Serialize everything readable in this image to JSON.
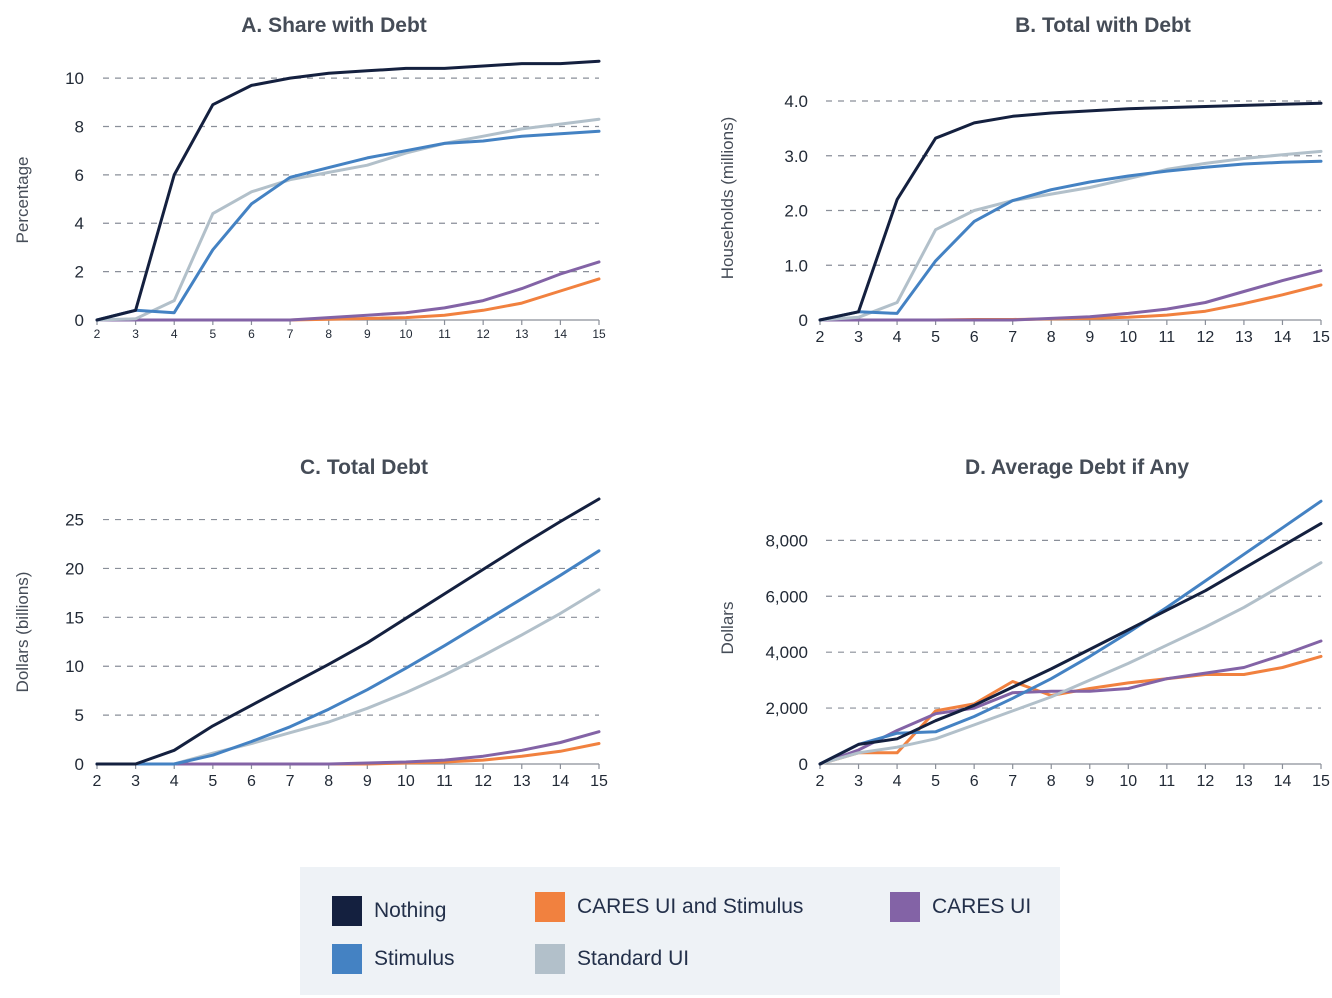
{
  "colors": {
    "Nothing": "#14203f",
    "Stimulus": "#4482c3",
    "Standard UI": "#b2c0ca",
    "CARES UI": "#8363a6",
    "CARES UI and Stimulus": "#f1813f",
    "grid": "#8a8f99",
    "axis": "#8a8f99",
    "text": "#454c57"
  },
  "legend": {
    "items": [
      {
        "label": "Nothing",
        "series": "Nothing"
      },
      {
        "label": "CARES UI and Stimulus",
        "series": "CARES UI and Stimulus"
      },
      {
        "label": "CARES UI",
        "series": "CARES UI"
      },
      {
        "label": "Stimulus",
        "series": "Stimulus"
      },
      {
        "label": "Standard UI",
        "series": "Standard UI"
      }
    ]
  },
  "chart_data": [
    {
      "type": "line",
      "title": "A. Share with Debt",
      "xlabel": "",
      "ylabel": "Percentage",
      "x": [
        2,
        3,
        4,
        5,
        6,
        7,
        8,
        9,
        10,
        11,
        12,
        13,
        14,
        15
      ],
      "xlim": [
        2,
        15
      ],
      "ylim": [
        0,
        10.5
      ],
      "yticks": [
        0,
        2,
        4,
        6,
        8,
        10
      ],
      "ytick_labels": [
        "0",
        "2",
        "4",
        "6",
        "8",
        "10"
      ],
      "grid": true,
      "series": [
        {
          "name": "Nothing",
          "values": [
            0,
            0.4,
            6.0,
            8.9,
            9.7,
            10.0,
            10.2,
            10.3,
            10.4,
            10.4,
            10.5,
            10.6,
            10.6,
            10.7
          ]
        },
        {
          "name": "Stimulus",
          "values": [
            0,
            0.4,
            0.3,
            2.9,
            4.8,
            5.9,
            6.3,
            6.7,
            7.0,
            7.3,
            7.4,
            7.6,
            7.7,
            7.8
          ]
        },
        {
          "name": "Standard UI",
          "values": [
            0,
            0.05,
            0.8,
            4.4,
            5.3,
            5.8,
            6.1,
            6.4,
            6.9,
            7.3,
            7.6,
            7.9,
            8.1,
            8.3
          ]
        },
        {
          "name": "CARES UI",
          "values": [
            0,
            0,
            0,
            0,
            0,
            0,
            0.1,
            0.2,
            0.3,
            0.5,
            0.8,
            1.3,
            1.9,
            2.4
          ]
        },
        {
          "name": "CARES UI and Stimulus",
          "values": [
            0,
            0,
            0,
            0,
            0,
            0,
            0.03,
            0.06,
            0.1,
            0.2,
            0.4,
            0.7,
            1.2,
            1.7
          ]
        }
      ]
    },
    {
      "type": "line",
      "title": "B. Total with Debt",
      "xlabel": "",
      "ylabel": "Households (millions)",
      "x": [
        2,
        3,
        4,
        5,
        6,
        7,
        8,
        9,
        10,
        11,
        12,
        13,
        14,
        15
      ],
      "xlim": [
        2,
        15
      ],
      "ylim": [
        0,
        4.0
      ],
      "yticks": [
        0,
        1,
        2,
        3,
        4
      ],
      "ytick_labels": [
        "0",
        "1.0",
        "2.0",
        "3.0",
        "4.0"
      ],
      "grid": true,
      "series": [
        {
          "name": "Nothing",
          "values": [
            0,
            0.15,
            2.2,
            3.32,
            3.6,
            3.72,
            3.78,
            3.82,
            3.86,
            3.88,
            3.9,
            3.92,
            3.94,
            3.96
          ]
        },
        {
          "name": "Stimulus",
          "values": [
            0,
            0.15,
            0.12,
            1.08,
            1.8,
            2.18,
            2.38,
            2.52,
            2.63,
            2.72,
            2.79,
            2.85,
            2.88,
            2.9
          ]
        },
        {
          "name": "Standard UI",
          "values": [
            0,
            0.05,
            0.32,
            1.65,
            2.0,
            2.18,
            2.3,
            2.42,
            2.58,
            2.75,
            2.86,
            2.95,
            3.02,
            3.08
          ]
        },
        {
          "name": "CARES UI",
          "values": [
            0,
            0,
            0,
            0,
            0,
            0,
            0.03,
            0.06,
            0.12,
            0.2,
            0.32,
            0.52,
            0.72,
            0.9
          ]
        },
        {
          "name": "CARES UI and Stimulus",
          "values": [
            0,
            0,
            0,
            0,
            0.01,
            0.01,
            0.02,
            0.03,
            0.05,
            0.09,
            0.16,
            0.3,
            0.46,
            0.64
          ]
        }
      ]
    },
    {
      "type": "line",
      "title": "C. Total Debt",
      "xlabel": "",
      "ylabel": "Dollars (billions)",
      "x": [
        2,
        3,
        4,
        5,
        6,
        7,
        8,
        9,
        10,
        11,
        12,
        13,
        14,
        15
      ],
      "xlim": [
        2,
        15
      ],
      "ylim": [
        0,
        27
      ],
      "yticks": [
        0,
        5,
        10,
        15,
        20,
        25
      ],
      "ytick_labels": [
        "0",
        "5",
        "10",
        "15",
        "20",
        "25"
      ],
      "grid": true,
      "series": [
        {
          "name": "Nothing",
          "values": [
            0,
            0,
            1.4,
            3.9,
            6.0,
            8.1,
            10.2,
            12.4,
            14.9,
            17.4,
            19.9,
            22.4,
            24.8,
            27.1
          ]
        },
        {
          "name": "Stimulus",
          "values": [
            0,
            0,
            0,
            0.9,
            2.3,
            3.8,
            5.6,
            7.6,
            9.8,
            12.1,
            14.5,
            16.9,
            19.3,
            21.8
          ]
        },
        {
          "name": "Standard UI",
          "values": [
            0,
            0,
            0,
            1.1,
            2.1,
            3.2,
            4.3,
            5.7,
            7.3,
            9.1,
            11.1,
            13.2,
            15.4,
            17.8
          ]
        },
        {
          "name": "CARES UI",
          "values": [
            0,
            0,
            0,
            0,
            0,
            0,
            0,
            0.1,
            0.2,
            0.4,
            0.8,
            1.4,
            2.2,
            3.3
          ]
        },
        {
          "name": "CARES UI and Stimulus",
          "values": [
            0,
            0,
            0,
            0,
            0,
            0,
            0,
            0,
            0.1,
            0.2,
            0.4,
            0.8,
            1.3,
            2.1
          ]
        }
      ]
    },
    {
      "type": "line",
      "title": "D. Average Debt if Any",
      "xlabel": "",
      "ylabel": "Dollars",
      "x": [
        2,
        3,
        4,
        5,
        6,
        7,
        8,
        9,
        10,
        11,
        12,
        13,
        14,
        15
      ],
      "xlim": [
        2,
        15
      ],
      "ylim": [
        0,
        9300
      ],
      "yticks": [
        0,
        2000,
        4000,
        6000,
        8000
      ],
      "ytick_labels": [
        "0",
        "2,000",
        "4,000",
        "6,000",
        "8,000"
      ],
      "grid": true,
      "series": [
        {
          "name": "Nothing",
          "values": [
            0,
            700,
            900,
            1550,
            2100,
            2750,
            3400,
            4100,
            4800,
            5500,
            6200,
            7000,
            7800,
            8600
          ]
        },
        {
          "name": "Stimulus",
          "values": [
            0,
            700,
            1100,
            1150,
            1700,
            2350,
            3050,
            3850,
            4700,
            5600,
            6550,
            7500,
            8450,
            9400
          ]
        },
        {
          "name": "Standard UI",
          "values": [
            0,
            400,
            600,
            900,
            1400,
            1900,
            2400,
            3000,
            3600,
            4250,
            4900,
            5600,
            6400,
            7200
          ]
        },
        {
          "name": "CARES UI",
          "values": [
            0,
            500,
            1200,
            1800,
            2000,
            2550,
            2600,
            2600,
            2700,
            3050,
            3250,
            3450,
            3900,
            4400
          ]
        },
        {
          "name": "CARES UI and Stimulus",
          "values": [
            0,
            400,
            400,
            1900,
            2150,
            2950,
            2450,
            2700,
            2900,
            3050,
            3200,
            3200,
            3450,
            3850
          ]
        }
      ]
    }
  ]
}
